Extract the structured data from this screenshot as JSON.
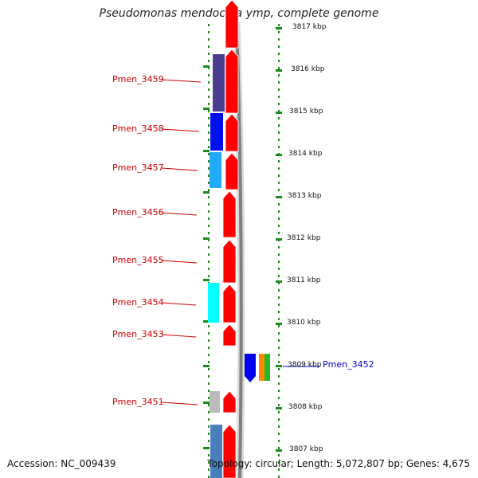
{
  "title": "Pseudomonas mendocina ymp, complete genome",
  "footer": {
    "accession": "Accession: NC_009439",
    "summary": "Topology: circular; Length: 5,072,807 bp; Genes: 4,675"
  },
  "colors": {
    "strand_forward": "#ff0000",
    "dotted_track": "#1a8a1a",
    "label_red": "#cc0000",
    "label_blue": "#0000cc",
    "backbone": "#808080"
  },
  "kbp_ticks": [
    "3817 kbp",
    "3816 kbp",
    "3815 kbp",
    "3814 kbp",
    "3813 kbp",
    "3812 kbp",
    "3811 kbp",
    "3810 kbp",
    "3809 kbp",
    "3808 kbp",
    "3807 kbp"
  ],
  "genes": [
    {
      "label": "Pmen_3459",
      "color": "#4a3f8f"
    },
    {
      "label": "Pmen_3458",
      "color": "#0011ee"
    },
    {
      "label": "Pmen_3457",
      "color": "#22aaff"
    },
    {
      "label": "Pmen_3456",
      "color": ""
    },
    {
      "label": "Pmen_3455",
      "color": ""
    },
    {
      "label": "Pmen_3454",
      "color": "#00ffff"
    },
    {
      "label": "Pmen_3453",
      "color": ""
    },
    {
      "label": "Pmen_3452",
      "color": "#0000ee"
    },
    {
      "label": "Pmen_3451",
      "color": "#bbbbbb"
    }
  ]
}
